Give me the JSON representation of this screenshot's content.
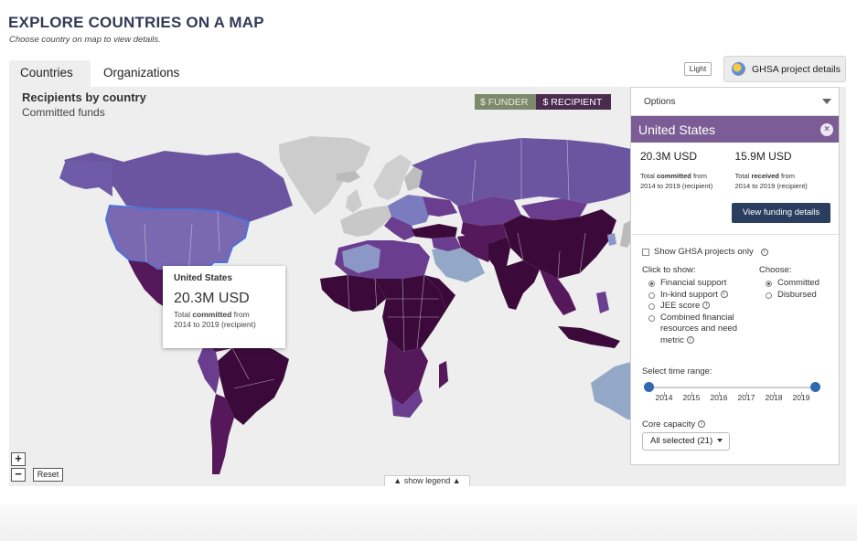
{
  "page": {
    "title": "EXPLORE COUNTRIES ON A MAP",
    "subtitle": "Choose country on map to view details."
  },
  "tabs": [
    {
      "label": "Countries",
      "active": true
    },
    {
      "label": "Organizations",
      "active": false
    }
  ],
  "toolbar": {
    "light_label": "Light",
    "ghsa_label": "GHSA project details"
  },
  "map": {
    "title": "Recipients by country",
    "subtitle": "Committed funds",
    "toggle": {
      "funder": "$ FUNDER",
      "recipient": "$ RECIPIENT",
      "selected": "recipient"
    },
    "colors": {
      "ocean": "#eeeeee",
      "darkest": "#3c0a3a",
      "dark": "#55185a",
      "mid": "#6a3d8e",
      "light": "#7b68b0",
      "pale": "#8b97c7",
      "steel": "#92a8c6",
      "nodata": "#cccccc"
    },
    "zoom_in": "+",
    "zoom_out": "−",
    "reset_label": "Reset",
    "legend_label": "show legend"
  },
  "tooltip": {
    "country": "United States",
    "value": "20.3M USD",
    "desc_prefix": "Total ",
    "desc_bold": "committed",
    "desc_suffix": " from",
    "desc_line2": "2014 to 2019 (recipient)"
  },
  "options": {
    "header": "Options",
    "country": "United States",
    "close_symbol": "×",
    "committed": {
      "value": "20.3M USD",
      "prefix": "Total ",
      "bold": "committed",
      "suffix": " from",
      "line2": "2014 to 2019 (recipient)"
    },
    "received": {
      "value": "15.9M USD",
      "prefix": "Total ",
      "bold": "received",
      "suffix": " from",
      "line2": "2014 to 2019 (recipient)"
    },
    "view_button": "View funding details",
    "ghsa_only": "Show GHSA projects only",
    "click_to_show": {
      "title": "Click to show:",
      "items": [
        "Financial support",
        "In-kind support",
        "JEE score",
        "Combined financial resources and need metric"
      ],
      "selected": 0
    },
    "choose": {
      "title": "Choose:",
      "items": [
        "Committed",
        "Disbursed"
      ],
      "selected": 0
    },
    "time_range": {
      "title": "Select time range:",
      "ticks": [
        "2014",
        "2015",
        "2016",
        "2017",
        "2018",
        "2019"
      ],
      "start": "2014",
      "end": "2019"
    },
    "core_capacity": {
      "title": "Core capacity",
      "value": "All selected (21)"
    }
  }
}
